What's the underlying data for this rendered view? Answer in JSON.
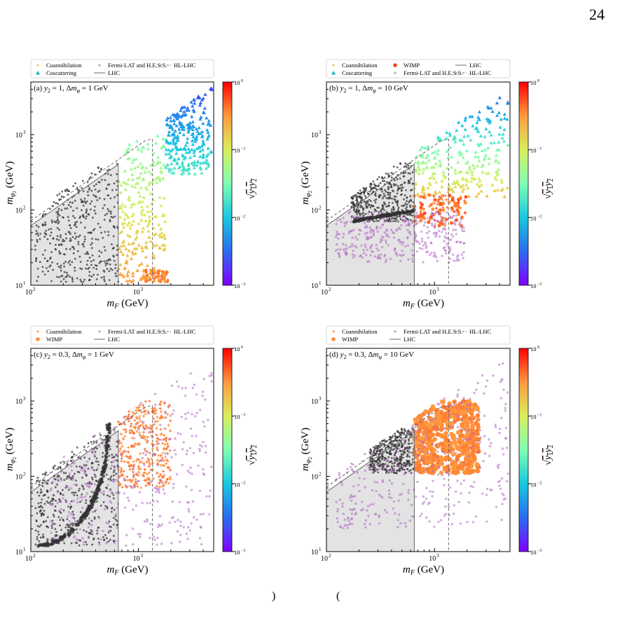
{
  "page": {
    "number": "24",
    "bottom_fragments": [
      ")",
      "("
    ]
  },
  "colormap": {
    "stops": [
      "#7f00ff",
      "#2a6cf0",
      "#18c8e0",
      "#7fffb2",
      "#d8ee5e",
      "#ff9a3e",
      "#ff0000"
    ],
    "ticks": [
      "10",
      "10",
      "10",
      "10"
    ],
    "tick_exponents": [
      "0",
      "−1",
      "−2",
      "−3"
    ],
    "label": "√y1y2",
    "range": [
      0.001,
      1
    ]
  },
  "chart_data": [
    {
      "type": "scatter",
      "panel": "a",
      "title": "(a) y2 = 1, Δmφ = 1 GeV",
      "xlabel": "mF (GeV)",
      "ylabel": "mφ2 (GeV)",
      "xscale": "log",
      "yscale": "log",
      "xlim": [
        100,
        5000
      ],
      "ylim": [
        10,
        5000
      ],
      "xticks": [
        "10^2",
        "10^3"
      ],
      "yticks": [
        "10^1",
        "10^2",
        "10^3"
      ],
      "legend": [
        "Coannihilation",
        "Coscattering",
        "Fermi-LAT and H.E.S.S.",
        "LHC",
        "HL-LHC"
      ],
      "legend_columns": [
        [
          "Coannihilation",
          "Coscattering"
        ],
        [
          "Fermi-LAT and H.E.S.S.",
          "LHC"
        ],
        [
          "HL-LHC"
        ]
      ],
      "lhc_limit_mF": 650,
      "hllhc_limit_mF": 1350,
      "regions": [
        {
          "series": "LHC-excluded (grey)",
          "kind": "grey",
          "x": [
            110,
            650
          ],
          "y": [
            11,
            430
          ]
        },
        {
          "series": "Coscattering",
          "kind": "tri",
          "x": [
            650,
            1800
          ],
          "y": [
            11,
            1000
          ],
          "color_range": [
            0.3,
            0.03
          ]
        },
        {
          "series": "Coscattering",
          "kind": "tri",
          "x": [
            1800,
            4800
          ],
          "y": [
            300,
            4500
          ],
          "color_range": [
            0.02,
            0.002
          ]
        },
        {
          "series": "Coannihilation",
          "kind": "dot",
          "x": [
            1100,
            1900
          ],
          "y": [
            11,
            16
          ],
          "color_range": [
            0.5,
            0.2
          ]
        }
      ]
    },
    {
      "type": "scatter",
      "panel": "b",
      "title": "(b) y2 = 1, Δmφ = 10 GeV",
      "xlabel": "mF (GeV)",
      "ylabel": "mφ2 (GeV)",
      "xscale": "log",
      "yscale": "log",
      "xlim": [
        100,
        5000
      ],
      "ylim": [
        10,
        5000
      ],
      "xticks": [
        "10^2",
        "10^3"
      ],
      "yticks": [
        "10^1",
        "10^2",
        "10^3"
      ],
      "legend": [
        "Coannihilation",
        "Coscattering",
        "WIMP",
        "Fermi-LAT and H.E.S.S.",
        "LHC",
        "HL-LHC"
      ],
      "legend_columns": [
        [
          "Coannihilation",
          "Coscattering"
        ],
        [
          "WIMP",
          "Fermi-LAT and H.E.S.S."
        ],
        [
          "LHC",
          "HL-LHC"
        ]
      ],
      "lhc_limit_mF": 650,
      "hllhc_limit_mF": 1350,
      "regions": [
        {
          "series": "LHC-excluded (grey)",
          "kind": "grey",
          "x": [
            170,
            650
          ],
          "y": [
            70,
            430
          ]
        },
        {
          "series": "Coscattering",
          "kind": "tri",
          "x": [
            650,
            4800
          ],
          "y": [
            150,
            4500
          ],
          "color_range": [
            0.2,
            0.002
          ]
        },
        {
          "series": "WIMP",
          "kind": "mixed",
          "x": [
            650,
            2000
          ],
          "y": [
            60,
            160
          ],
          "color_range": [
            0.6,
            0.3
          ]
        },
        {
          "series": "Fermi-LAT and H.E.S.S.",
          "kind": "fermi",
          "x": [
            120,
            1900
          ],
          "y": [
            20,
            95
          ]
        },
        {
          "series": "Coannihilation (band)",
          "kind": "band",
          "x": [
            170,
            650
          ],
          "y": [
            70,
            100
          ]
        }
      ]
    },
    {
      "type": "scatter",
      "panel": "c",
      "title": "(c) y2 = 0.3, Δmφ = 1 GeV",
      "xlabel": "mF (GeV)",
      "ylabel": "mφ2 (GeV)",
      "xscale": "log",
      "yscale": "log",
      "xlim": [
        100,
        5000
      ],
      "ylim": [
        10,
        5000
      ],
      "xticks": [
        "10^2",
        "10^3"
      ],
      "yticks": [
        "10^1",
        "10^2",
        "10^3"
      ],
      "legend": [
        "Coannihilation",
        "WIMP",
        "Fermi-LAT and H.E.S.S.",
        "LHC",
        "HL-LHC"
      ],
      "legend_columns": [
        [
          "Coannihilation",
          "WIMP"
        ],
        [
          "Fermi-LAT and H.E.S.S.",
          "LHC"
        ],
        [
          "HL-LHC"
        ]
      ],
      "lhc_limit_mF": 650,
      "hllhc_limit_mF": 1350,
      "regions": [
        {
          "series": "LHC-excluded (grey)",
          "kind": "grey",
          "x": [
            110,
            650
          ],
          "y": [
            12,
            430
          ]
        },
        {
          "series": "Coannihilation",
          "kind": "plus",
          "x": [
            650,
            2000
          ],
          "y": [
            70,
            1000
          ],
          "color_range": [
            0.5,
            0.3
          ]
        },
        {
          "series": "Fermi-LAT and H.E.S.S.",
          "kind": "fermi",
          "x": [
            150,
            4800
          ],
          "y": [
            12,
            4500
          ]
        },
        {
          "series": "Coannihilation (band)",
          "kind": "arc",
          "x": [
            115,
            560
          ],
          "y": [
            12,
            420
          ]
        }
      ]
    },
    {
      "type": "scatter",
      "panel": "d",
      "title": "(d) y2 = 0.3, Δmφ = 10 GeV",
      "xlabel": "mF (GeV)",
      "ylabel": "mφ2 (GeV)",
      "xscale": "log",
      "yscale": "log",
      "xlim": [
        100,
        5000
      ],
      "ylim": [
        10,
        5000
      ],
      "xticks": [
        "10^2",
        "10^3"
      ],
      "yticks": [
        "10^1",
        "10^2",
        "10^3"
      ],
      "legend": [
        "Coannihilation",
        "WIMP",
        "Fermi-LAT and H.E.S.S.",
        "LHC",
        "HL-LHC"
      ],
      "legend_columns": [
        [
          "Coannihilation",
          "WIMP"
        ],
        [
          "Fermi-LAT and H.E.S.S.",
          "LHC"
        ],
        [
          "HL-LHC"
        ]
      ],
      "lhc_limit_mF": 650,
      "hllhc_limit_mF": 1350,
      "regions": [
        {
          "series": "LHC-excluded (grey)",
          "kind": "grey",
          "x": [
            250,
            650
          ],
          "y": [
            110,
            430
          ]
        },
        {
          "series": "WIMP",
          "kind": "blob",
          "x": [
            650,
            2600
          ],
          "y": [
            110,
            1000
          ],
          "color_range": [
            0.4,
            0.3
          ]
        },
        {
          "series": "Fermi-LAT and H.E.S.S.",
          "kind": "fermi",
          "x": [
            120,
            4800
          ],
          "y": [
            20,
            4500
          ]
        }
      ]
    }
  ]
}
